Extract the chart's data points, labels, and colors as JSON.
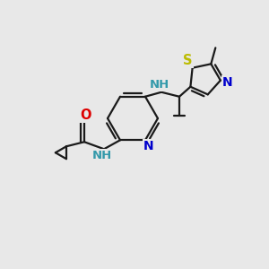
{
  "background_color": "#e8e8e8",
  "bond_color": "#1a1a1a",
  "atom_colors": {
    "O": "#dd0000",
    "N": "#0000cc",
    "S": "#bbbb00",
    "NH": "#3399aa"
  },
  "figsize": [
    3.0,
    3.0
  ],
  "dpi": 100
}
